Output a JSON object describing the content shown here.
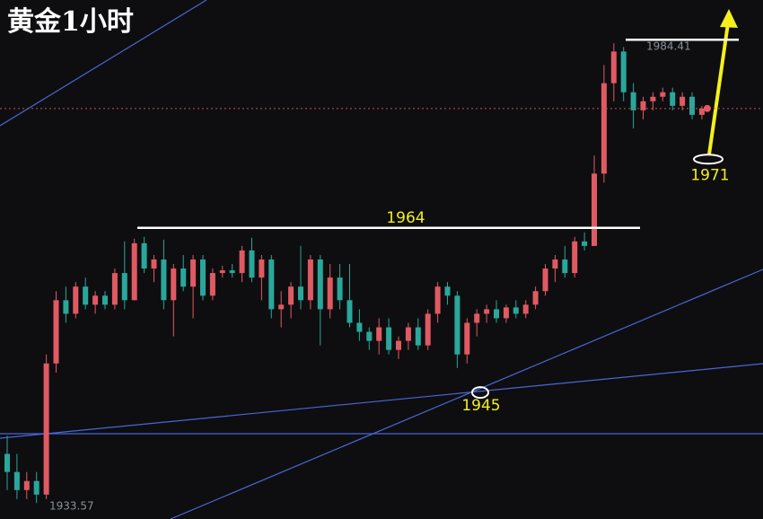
{
  "chart_data": {
    "type": "candlestick",
    "title": "黄金1小时",
    "up_color": "#e05a63",
    "down_color": "#2aa79b",
    "ylim": [
      1931.8,
      1989.2
    ],
    "resistance": 1964,
    "support": 1945,
    "target": 1971,
    "open": [
      1939,
      1937,
      1935,
      1936,
      1934.5,
      1949,
      1956,
      1954.5,
      1957.5,
      1955.5,
      1956.5,
      1955.5,
      1959,
      1956,
      1962.3,
      1959.5,
      1960.5,
      1956,
      1959.5,
      1957.5,
      1960.5,
      1956.5,
      1959,
      1959.3,
      1959,
      1961.5,
      1958.5,
      1960.5,
      1955,
      1955.5,
      1957.5,
      1956,
      1960.5,
      1955,
      1958.5,
      1956,
      1953.5,
      1952.5,
      1951.5,
      1953,
      1950.5,
      1951.5,
      1953,
      1951,
      1954.5,
      1957.5,
      1956.5,
      1950,
      1953.5,
      1954.5,
      1955,
      1954,
      1955.2,
      1954.5,
      1955.5,
      1957,
      1959.5,
      1960.5,
      1959,
      1962.5,
      1962,
      1970,
      1980,
      1983.5,
      1979,
      1977,
      1978,
      1978.5,
      1979,
      1977.5,
      1978.5,
      1976.5
    ],
    "high": [
      1941,
      1939,
      1937,
      1937,
      1950,
      1957,
      1957.5,
      1958,
      1958.5,
      1957,
      1957,
      1959.5,
      1962.5,
      1962.8,
      1963,
      1961,
      1962.7,
      1960,
      1961,
      1961,
      1961,
      1959.5,
      1959.8,
      1960,
      1962,
      1962.9,
      1961,
      1961,
      1957,
      1958,
      1962,
      1961,
      1961,
      1960,
      1960,
      1960,
      1955,
      1953,
      1954,
      1954,
      1952,
      1953.5,
      1954,
      1955,
      1958,
      1958,
      1957,
      1954,
      1955,
      1955.5,
      1956,
      1955.5,
      1956,
      1956,
      1957.5,
      1960,
      1961,
      1962,
      1963,
      1963.5,
      1972,
      1982,
      1984.41,
      1984,
      1980,
      1978.5,
      1979,
      1979.5,
      1979.5,
      1979,
      1979,
      1977.5
    ],
    "low": [
      1935,
      1934,
      1934,
      1933.57,
      1934,
      1948,
      1953.5,
      1954,
      1955,
      1954.5,
      1955,
      1955,
      1955,
      1956,
      1959,
      1958,
      1955,
      1952,
      1957,
      1954,
      1956,
      1956,
      1958.5,
      1958.5,
      1958,
      1958,
      1956,
      1954,
      1953,
      1954,
      1955,
      1955,
      1951,
      1954,
      1955,
      1953,
      1951.5,
      1950.5,
      1950,
      1950,
      1949.5,
      1950.5,
      1950.5,
      1950.5,
      1953.5,
      1955.5,
      1948.5,
      1949,
      1952,
      1953.5,
      1953.5,
      1953.5,
      1954,
      1954,
      1955,
      1956.5,
      1958,
      1958.5,
      1958.5,
      1961.5,
      1962,
      1969,
      1978,
      1978,
      1975,
      1976,
      1977,
      1978,
      1977,
      1977,
      1976,
      1976
    ],
    "close": [
      1937,
      1935,
      1936,
      1934.5,
      1949,
      1956,
      1954.5,
      1957.5,
      1955.5,
      1956.5,
      1955.5,
      1959,
      1956,
      1962.3,
      1959.5,
      1960.5,
      1956,
      1959.5,
      1957.5,
      1960.5,
      1956.5,
      1959,
      1959.3,
      1959,
      1961.5,
      1958.5,
      1960.5,
      1955,
      1955.5,
      1957.5,
      1956,
      1960.5,
      1955,
      1958.5,
      1956,
      1953.5,
      1952.5,
      1951.5,
      1953,
      1950.5,
      1951.5,
      1953,
      1951,
      1954.5,
      1957.5,
      1956.5,
      1950,
      1953.5,
      1954.5,
      1955,
      1954,
      1955.2,
      1954.5,
      1955.5,
      1957,
      1959.5,
      1960.5,
      1959,
      1962.5,
      1962,
      1970,
      1980,
      1983.5,
      1979,
      1977,
      1978,
      1978.5,
      1979,
      1977.5,
      1978.5,
      1976.5,
      1977.2
    ]
  }
}
